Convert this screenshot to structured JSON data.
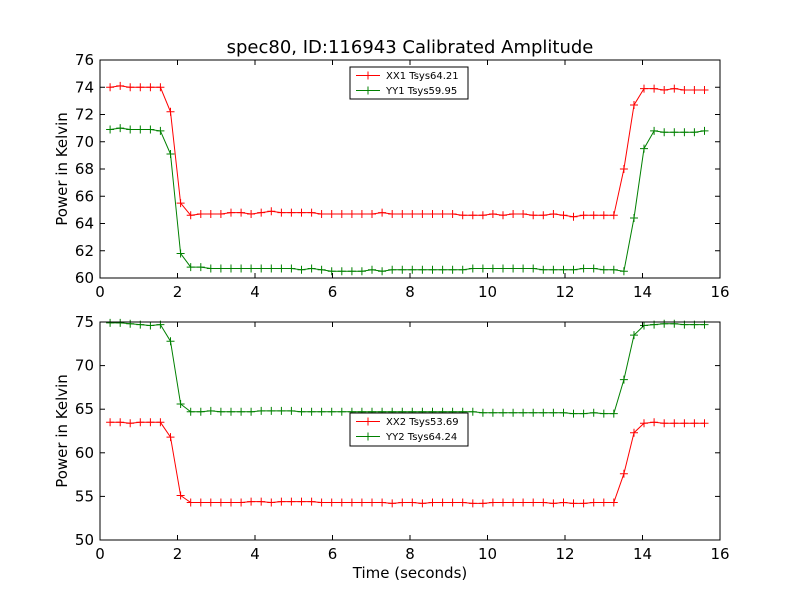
{
  "figure": {
    "title": "spec80, ID:116943 Calibrated Amplitude"
  },
  "chart_data": [
    {
      "type": "line",
      "title": "spec80, ID:116943 Calibrated Amplitude",
      "xlabel": "",
      "ylabel": "Power in Kelvin",
      "xlim": [
        0,
        16
      ],
      "ylim": [
        60,
        76
      ],
      "xticks": [
        "0",
        "2",
        "4",
        "6",
        "8",
        "10",
        "12",
        "14",
        "16"
      ],
      "yticks": [
        "60",
        "62",
        "64",
        "66",
        "68",
        "70",
        "72",
        "74",
        "76"
      ],
      "legend_position": "top-center",
      "series": [
        {
          "name": "XX1 Tsys64.21",
          "color": "#ff0000",
          "x": [
            0.26,
            0.52,
            0.78,
            1.04,
            1.3,
            1.56,
            1.82,
            2.08,
            2.34,
            2.6,
            2.86,
            3.12,
            3.38,
            3.64,
            3.9,
            4.16,
            4.42,
            4.68,
            4.94,
            5.2,
            5.46,
            5.72,
            5.98,
            6.24,
            6.5,
            6.76,
            7.02,
            7.28,
            7.54,
            7.8,
            8.06,
            8.32,
            8.58,
            8.84,
            9.1,
            9.36,
            9.62,
            9.88,
            10.14,
            10.4,
            10.66,
            10.92,
            11.18,
            11.44,
            11.7,
            11.96,
            12.22,
            12.48,
            12.74,
            13.0,
            13.26,
            13.52,
            13.78,
            14.04,
            14.3,
            14.56,
            14.82,
            15.08,
            15.34,
            15.6
          ],
          "y": [
            74.0,
            74.1,
            74.0,
            74.0,
            74.0,
            74.0,
            72.2,
            65.5,
            64.6,
            64.7,
            64.7,
            64.7,
            64.8,
            64.8,
            64.7,
            64.8,
            64.9,
            64.8,
            64.8,
            64.8,
            64.8,
            64.7,
            64.7,
            64.7,
            64.7,
            64.7,
            64.7,
            64.8,
            64.7,
            64.7,
            64.7,
            64.7,
            64.7,
            64.7,
            64.7,
            64.6,
            64.6,
            64.6,
            64.7,
            64.6,
            64.7,
            64.7,
            64.6,
            64.6,
            64.7,
            64.6,
            64.5,
            64.6,
            64.6,
            64.6,
            64.6,
            68.0,
            72.7,
            73.9,
            73.9,
            73.8,
            73.9,
            73.8,
            73.8,
            73.8
          ]
        },
        {
          "name": "YY1 Tsys59.95",
          "color": "#008000",
          "x": [
            0.26,
            0.52,
            0.78,
            1.04,
            1.3,
            1.56,
            1.82,
            2.08,
            2.34,
            2.6,
            2.86,
            3.12,
            3.38,
            3.64,
            3.9,
            4.16,
            4.42,
            4.68,
            4.94,
            5.2,
            5.46,
            5.72,
            5.98,
            6.24,
            6.5,
            6.76,
            7.02,
            7.28,
            7.54,
            7.8,
            8.06,
            8.32,
            8.58,
            8.84,
            9.1,
            9.36,
            9.62,
            9.88,
            10.14,
            10.4,
            10.66,
            10.92,
            11.18,
            11.44,
            11.7,
            11.96,
            12.22,
            12.48,
            12.74,
            13.0,
            13.26,
            13.52,
            13.78,
            14.04,
            14.3,
            14.56,
            14.82,
            15.08,
            15.34,
            15.6
          ],
          "y": [
            70.9,
            71.0,
            70.9,
            70.9,
            70.9,
            70.8,
            69.1,
            61.8,
            60.8,
            60.8,
            60.7,
            60.7,
            60.7,
            60.7,
            60.7,
            60.7,
            60.7,
            60.7,
            60.7,
            60.6,
            60.7,
            60.6,
            60.5,
            60.5,
            60.5,
            60.5,
            60.6,
            60.5,
            60.6,
            60.6,
            60.6,
            60.6,
            60.6,
            60.6,
            60.6,
            60.6,
            60.7,
            60.7,
            60.7,
            60.7,
            60.7,
            60.7,
            60.7,
            60.6,
            60.6,
            60.6,
            60.6,
            60.7,
            60.7,
            60.6,
            60.6,
            60.5,
            64.4,
            69.5,
            70.8,
            70.7,
            70.7,
            70.7,
            70.7,
            70.8
          ]
        }
      ]
    },
    {
      "type": "line",
      "title": "",
      "xlabel": "Time (seconds)",
      "ylabel": "Power in Kelvin",
      "xlim": [
        0,
        16
      ],
      "ylim": [
        50,
        75
      ],
      "xticks": [
        "0",
        "2",
        "4",
        "6",
        "8",
        "10",
        "12",
        "14",
        "16"
      ],
      "yticks": [
        "50",
        "55",
        "60",
        "65",
        "70",
        "75"
      ],
      "legend_position": "center",
      "series": [
        {
          "name": "XX2 Tsys53.69",
          "color": "#ff0000",
          "x": [
            0.26,
            0.52,
            0.78,
            1.04,
            1.3,
            1.56,
            1.82,
            2.08,
            2.34,
            2.6,
            2.86,
            3.12,
            3.38,
            3.64,
            3.9,
            4.16,
            4.42,
            4.68,
            4.94,
            5.2,
            5.46,
            5.72,
            5.98,
            6.24,
            6.5,
            6.76,
            7.02,
            7.28,
            7.54,
            7.8,
            8.06,
            8.32,
            8.58,
            8.84,
            9.1,
            9.36,
            9.62,
            9.88,
            10.14,
            10.4,
            10.66,
            10.92,
            11.18,
            11.44,
            11.7,
            11.96,
            12.22,
            12.48,
            12.74,
            13.0,
            13.26,
            13.52,
            13.78,
            14.04,
            14.3,
            14.56,
            14.82,
            15.08,
            15.34,
            15.6
          ],
          "y": [
            63.5,
            63.5,
            63.4,
            63.5,
            63.5,
            63.5,
            61.8,
            55.1,
            54.3,
            54.3,
            54.3,
            54.3,
            54.3,
            54.3,
            54.4,
            54.4,
            54.3,
            54.4,
            54.4,
            54.4,
            54.4,
            54.3,
            54.3,
            54.3,
            54.3,
            54.3,
            54.3,
            54.3,
            54.2,
            54.3,
            54.3,
            54.2,
            54.3,
            54.3,
            54.3,
            54.3,
            54.2,
            54.2,
            54.3,
            54.3,
            54.3,
            54.3,
            54.3,
            54.3,
            54.2,
            54.3,
            54.2,
            54.2,
            54.3,
            54.3,
            54.3,
            57.6,
            62.3,
            63.4,
            63.5,
            63.4,
            63.4,
            63.4,
            63.4,
            63.4
          ]
        },
        {
          "name": "YY2 Tsys64.24",
          "color": "#008000",
          "x": [
            0.26,
            0.52,
            0.78,
            1.04,
            1.3,
            1.56,
            1.82,
            2.08,
            2.34,
            2.6,
            2.86,
            3.12,
            3.38,
            3.64,
            3.9,
            4.16,
            4.42,
            4.68,
            4.94,
            5.2,
            5.46,
            5.72,
            5.98,
            6.24,
            6.5,
            6.76,
            7.02,
            7.28,
            7.54,
            7.8,
            8.06,
            8.32,
            8.58,
            8.84,
            9.1,
            9.36,
            9.62,
            9.88,
            10.14,
            10.4,
            10.66,
            10.92,
            11.18,
            11.44,
            11.7,
            11.96,
            12.22,
            12.48,
            12.74,
            13.0,
            13.26,
            13.52,
            13.78,
            14.04,
            14.3,
            14.56,
            14.82,
            15.08,
            15.34,
            15.6
          ],
          "y": [
            74.9,
            74.9,
            74.8,
            74.7,
            74.6,
            74.7,
            72.8,
            65.6,
            64.7,
            64.7,
            64.8,
            64.7,
            64.7,
            64.7,
            64.7,
            64.8,
            64.8,
            64.8,
            64.8,
            64.7,
            64.7,
            64.7,
            64.7,
            64.7,
            64.7,
            64.7,
            64.7,
            64.7,
            64.7,
            64.7,
            64.7,
            64.7,
            64.7,
            64.7,
            64.7,
            64.7,
            64.7,
            64.6,
            64.6,
            64.6,
            64.6,
            64.6,
            64.6,
            64.6,
            64.6,
            64.6,
            64.5,
            64.5,
            64.6,
            64.5,
            64.5,
            68.4,
            73.5,
            74.6,
            74.7,
            74.8,
            74.8,
            74.7,
            74.7,
            74.7
          ]
        }
      ]
    }
  ]
}
